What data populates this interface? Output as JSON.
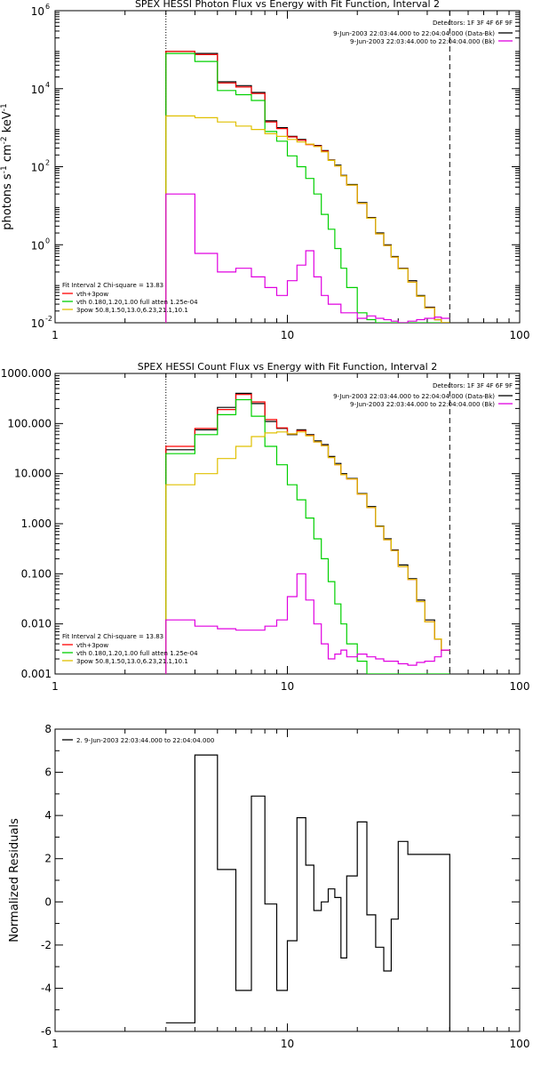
{
  "chart_data": [
    {
      "type": "line",
      "title": "SPEX HESSI Photon Flux vs Energy with Fit Function, Interval 2",
      "ylabel_parts": [
        "photons s",
        "-1",
        " cm",
        "-2",
        " keV",
        "-1"
      ],
      "xscale": "log",
      "yscale": "log",
      "xlim": [
        1,
        100
      ],
      "ylim": [
        0.01,
        1000000
      ],
      "xticks": [
        1,
        10,
        100
      ],
      "xtick_labels": [
        "1",
        "10",
        "100"
      ],
      "yticks": [
        0.01,
        1,
        100,
        10000,
        1000000
      ],
      "ytick_labels": [
        [
          "10",
          "-2"
        ],
        [
          "10",
          "0"
        ],
        [
          "10",
          "2"
        ],
        [
          "10",
          "4"
        ],
        [
          "10",
          "6"
        ]
      ],
      "vlines": [
        {
          "x": 3,
          "style": "dotted"
        },
        {
          "x": 50,
          "style": "dashed"
        }
      ],
      "legend_top": {
        "header": "Detectors: 1F 3F 4F 6F 9F",
        "entries": [
          {
            "label": "9-Jun-2003 22:03:44.000 to 22:04:04.000 (Data-Bk)",
            "color": "#000000"
          },
          {
            "label": "9-Jun-2003 22:03:44.000 to 22:04:04.000 (Bk)",
            "color": "#e000e0"
          }
        ]
      },
      "legend_bottom": {
        "header": "Fit Interval 2   Chi-square = 13.83",
        "entries": [
          {
            "label": "vth+3pow",
            "color": "#ff0000"
          },
          {
            "label": "vth 0.180,1.20,1.00  full atten 1.25e-04",
            "color": "#00d000"
          },
          {
            "label": "3pow 50.8,1.50,13.0,6.23,21.1,10.1",
            "color": "#e0c000"
          }
        ]
      },
      "bin_edges": [
        3,
        4,
        5,
        6,
        7,
        8,
        9,
        10,
        11,
        12,
        13,
        14,
        15,
        16,
        17,
        18,
        20,
        22,
        24,
        26,
        28,
        30,
        33,
        36,
        39,
        43,
        46,
        50
      ],
      "series": [
        {
          "color": "#000000",
          "values": [
            90000,
            80000,
            15000,
            12000,
            8000,
            1500,
            1000,
            600,
            500,
            380,
            350,
            260,
            150,
            110,
            60,
            35,
            12,
            5,
            2.0,
            1.0,
            0.5,
            0.25,
            0.12,
            0.05,
            0.025,
            0.012,
            0.01
          ]
        },
        {
          "color": "#ff0000",
          "values": [
            90000,
            75000,
            14000,
            11000,
            7500,
            1400,
            950,
            580,
            480,
            370,
            340,
            250,
            145,
            105,
            58,
            34,
            11.5,
            4.8,
            1.9,
            0.95,
            0.48,
            0.24,
            0.11,
            0.048,
            0.024,
            0.012,
            0.01
          ]
        },
        {
          "color": "#00d000",
          "values": [
            80000,
            50000,
            9000,
            7000,
            5000,
            800,
            450,
            190,
            100,
            50,
            20,
            6,
            2.5,
            0.8,
            0.25,
            0.08,
            0.018,
            0.012,
            0.01,
            0.009,
            0.009,
            0.009,
            0.009,
            0.009,
            0.009,
            0.009,
            0.009
          ]
        },
        {
          "color": "#e0c000",
          "values": [
            2000,
            1800,
            1400,
            1100,
            900,
            700,
            600,
            500,
            430,
            380,
            330,
            240,
            145,
            105,
            58,
            34,
            11.5,
            4.8,
            1.9,
            0.95,
            0.48,
            0.24,
            0.11,
            0.048,
            0.024,
            0.012,
            0.01
          ]
        },
        {
          "color": "#e000e0",
          "values": [
            20,
            0.6,
            0.2,
            0.25,
            0.15,
            0.08,
            0.05,
            0.12,
            0.3,
            0.7,
            0.15,
            0.05,
            0.03,
            0.03,
            0.018,
            0.018,
            0.013,
            0.015,
            0.013,
            0.012,
            0.011,
            0.01,
            0.011,
            0.012,
            0.013,
            0.014,
            0.013
          ]
        }
      ]
    },
    {
      "type": "line",
      "title": "SPEX HESSI Count Flux vs Energy with Fit Function, Interval 2",
      "xscale": "log",
      "yscale": "log",
      "xlim": [
        1,
        100
      ],
      "ylim": [
        0.001,
        1000
      ],
      "xticks": [
        1,
        10,
        100
      ],
      "xtick_labels": [
        "1",
        "10",
        "100"
      ],
      "yticks": [
        0.001,
        0.01,
        0.1,
        1,
        10,
        100,
        1000
      ],
      "ytick_labels": [
        "0.001",
        "0.010",
        "0.100",
        "1.000",
        "10.000",
        "100.000",
        "1000.000"
      ],
      "vlines": [
        {
          "x": 3,
          "style": "dotted"
        },
        {
          "x": 50,
          "style": "dashed"
        }
      ],
      "legend_top": {
        "header": "Detectors: 1F 3F 4F 6F 9F",
        "entries": [
          {
            "label": "9-Jun-2003 22:03:44.000 to 22:04:04.000 (Data-Bk)",
            "color": "#000000"
          },
          {
            "label": "9-Jun-2003 22:03:44.000 to 22:04:04.000 (Bk)",
            "color": "#e000e0"
          }
        ]
      },
      "legend_bottom": {
        "header": "Fit Interval 2   Chi-square = 13.83",
        "entries": [
          {
            "label": "vth+3pow",
            "color": "#ff0000"
          },
          {
            "label": "vth 0.180,1.20,1.00  full atten 1.25e-04",
            "color": "#00d000"
          },
          {
            "label": "3pow 50.8,1.50,13.0,6.23,21.1,10.1",
            "color": "#e0c000"
          }
        ]
      },
      "bin_edges": [
        3,
        4,
        5,
        6,
        7,
        8,
        9,
        10,
        11,
        12,
        13,
        14,
        15,
        16,
        17,
        18,
        20,
        22,
        24,
        26,
        28,
        30,
        33,
        36,
        39,
        43,
        46,
        50
      ],
      "series": [
        {
          "color": "#000000",
          "values": [
            30,
            75,
            210,
            400,
            250,
            110,
            80,
            60,
            75,
            60,
            45,
            38,
            22,
            16,
            10,
            8,
            4,
            2.2,
            0.9,
            0.5,
            0.3,
            0.15,
            0.08,
            0.03,
            0.012,
            0.005,
            0.003
          ]
        },
        {
          "color": "#ff0000",
          "values": [
            35,
            80,
            190,
            380,
            270,
            120,
            82,
            62,
            72,
            58,
            43,
            36,
            21,
            15,
            9.5,
            7.8,
            3.9,
            2.1,
            0.88,
            0.48,
            0.29,
            0.14,
            0.077,
            0.028,
            0.011,
            0.005,
            0.003
          ]
        },
        {
          "color": "#00d000",
          "values": [
            25,
            60,
            150,
            300,
            140,
            35,
            15,
            6,
            3,
            1.3,
            0.5,
            0.2,
            0.07,
            0.025,
            0.01,
            0.004,
            0.0018,
            0.001,
            0.001,
            0.001,
            0.001,
            0.001,
            0.001,
            0.001,
            0.001,
            0.001,
            0.001
          ]
        },
        {
          "color": "#e0c000",
          "values": [
            6,
            10,
            20,
            35,
            55,
            65,
            68,
            62,
            68,
            57,
            43,
            36,
            21,
            15,
            9.5,
            7.8,
            3.9,
            2.1,
            0.88,
            0.48,
            0.29,
            0.14,
            0.077,
            0.028,
            0.011,
            0.005,
            0.003
          ]
        },
        {
          "color": "#e000e0",
          "values": [
            0.012,
            0.009,
            0.008,
            0.0075,
            0.0075,
            0.009,
            0.012,
            0.035,
            0.1,
            0.03,
            0.01,
            0.004,
            0.002,
            0.0025,
            0.003,
            0.0022,
            0.0025,
            0.0022,
            0.002,
            0.0018,
            0.0018,
            0.0016,
            0.0015,
            0.0017,
            0.0018,
            0.0022,
            0.003
          ]
        }
      ]
    },
    {
      "type": "line",
      "ylabel": "Normalized Residuals",
      "xscale": "log",
      "xlim": [
        1,
        100
      ],
      "ylim": [
        -6,
        8
      ],
      "xticks": [
        1,
        10,
        100
      ],
      "xtick_labels": [
        "1",
        "10",
        "100"
      ],
      "yticks": [
        -6,
        -4,
        -2,
        0,
        2,
        4,
        6,
        8
      ],
      "ytick_labels": [
        "-6",
        "-4",
        "-2",
        "0",
        "2",
        "4",
        "6",
        "8"
      ],
      "legend": [
        {
          "label": "2.  9-Jun-2003 22:03:44.000 to 22:04:04.000",
          "color": "#000000"
        }
      ],
      "bin_edges": [
        3,
        4,
        5,
        6,
        7,
        8,
        9,
        10,
        11,
        12,
        13,
        14,
        15,
        16,
        17,
        18,
        20,
        22,
        24,
        26,
        28,
        30,
        33,
        36,
        39,
        43,
        46,
        50
      ],
      "series": [
        {
          "color": "#000000",
          "values": [
            -5.6,
            6.8,
            1.5,
            -4.1,
            4.9,
            -0.1,
            -4.1,
            -1.8,
            3.9,
            1.7,
            -0.4,
            0.0,
            0.6,
            0.2,
            -2.6,
            1.2,
            3.7,
            -0.6,
            -2.1,
            -3.2,
            -0.8,
            2.8,
            2.2,
            2.2,
            2.2,
            2.2,
            2.2
          ]
        }
      ]
    }
  ]
}
